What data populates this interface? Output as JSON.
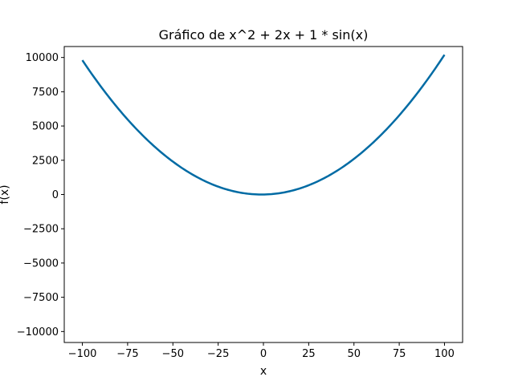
{
  "chart_data": {
    "type": "line",
    "title": "Gráfico de x^2 + 2x + 1 * sin(x)",
    "xlabel": "x",
    "ylabel": "f(x)",
    "xlim": [
      -110,
      110
    ],
    "ylim": [
      -10800,
      10800
    ],
    "x_ticks": [
      -100,
      -75,
      -50,
      -25,
      0,
      25,
      50,
      75,
      100
    ],
    "y_ticks": [
      -10000,
      -7500,
      -5000,
      -2500,
      0,
      2500,
      5000,
      7500,
      10000
    ],
    "x_tick_labels": [
      "−100",
      "−75",
      "−50",
      "−25",
      "0",
      "25",
      "50",
      "75",
      "100"
    ],
    "y_tick_labels": [
      "−10000",
      "−7500",
      "−5000",
      "−2500",
      "0",
      "2500",
      "5000",
      "7500",
      "10000"
    ],
    "grid": false,
    "legend": "none",
    "series": [
      {
        "color": "#006BA4",
        "function": "x^2 + 2x + 1 * sin(x)",
        "x_range": [
          -100,
          100
        ],
        "points": 200
      }
    ]
  }
}
